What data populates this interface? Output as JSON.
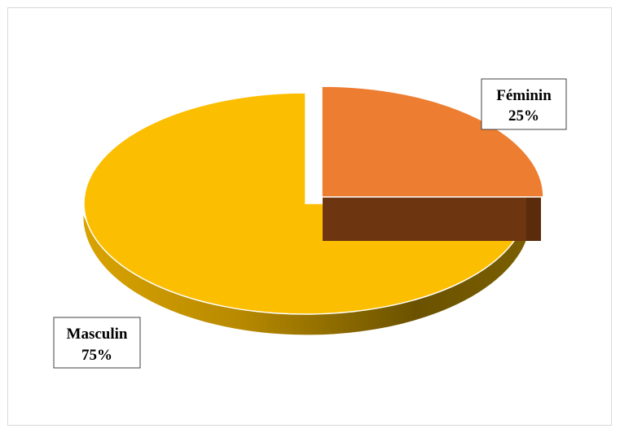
{
  "chart_data": {
    "type": "pie",
    "style": "3d-exploded",
    "title": "",
    "slices": [
      {
        "label": "Féminin",
        "value": 25,
        "percent_label": "25%",
        "color": "#ED7D31",
        "side_color": "#843C0C"
      },
      {
        "label": "Masculin",
        "value": 75,
        "percent_label": "75%",
        "color": "#FFC000",
        "side_color": "#7F6000"
      }
    ],
    "legend": "none"
  }
}
